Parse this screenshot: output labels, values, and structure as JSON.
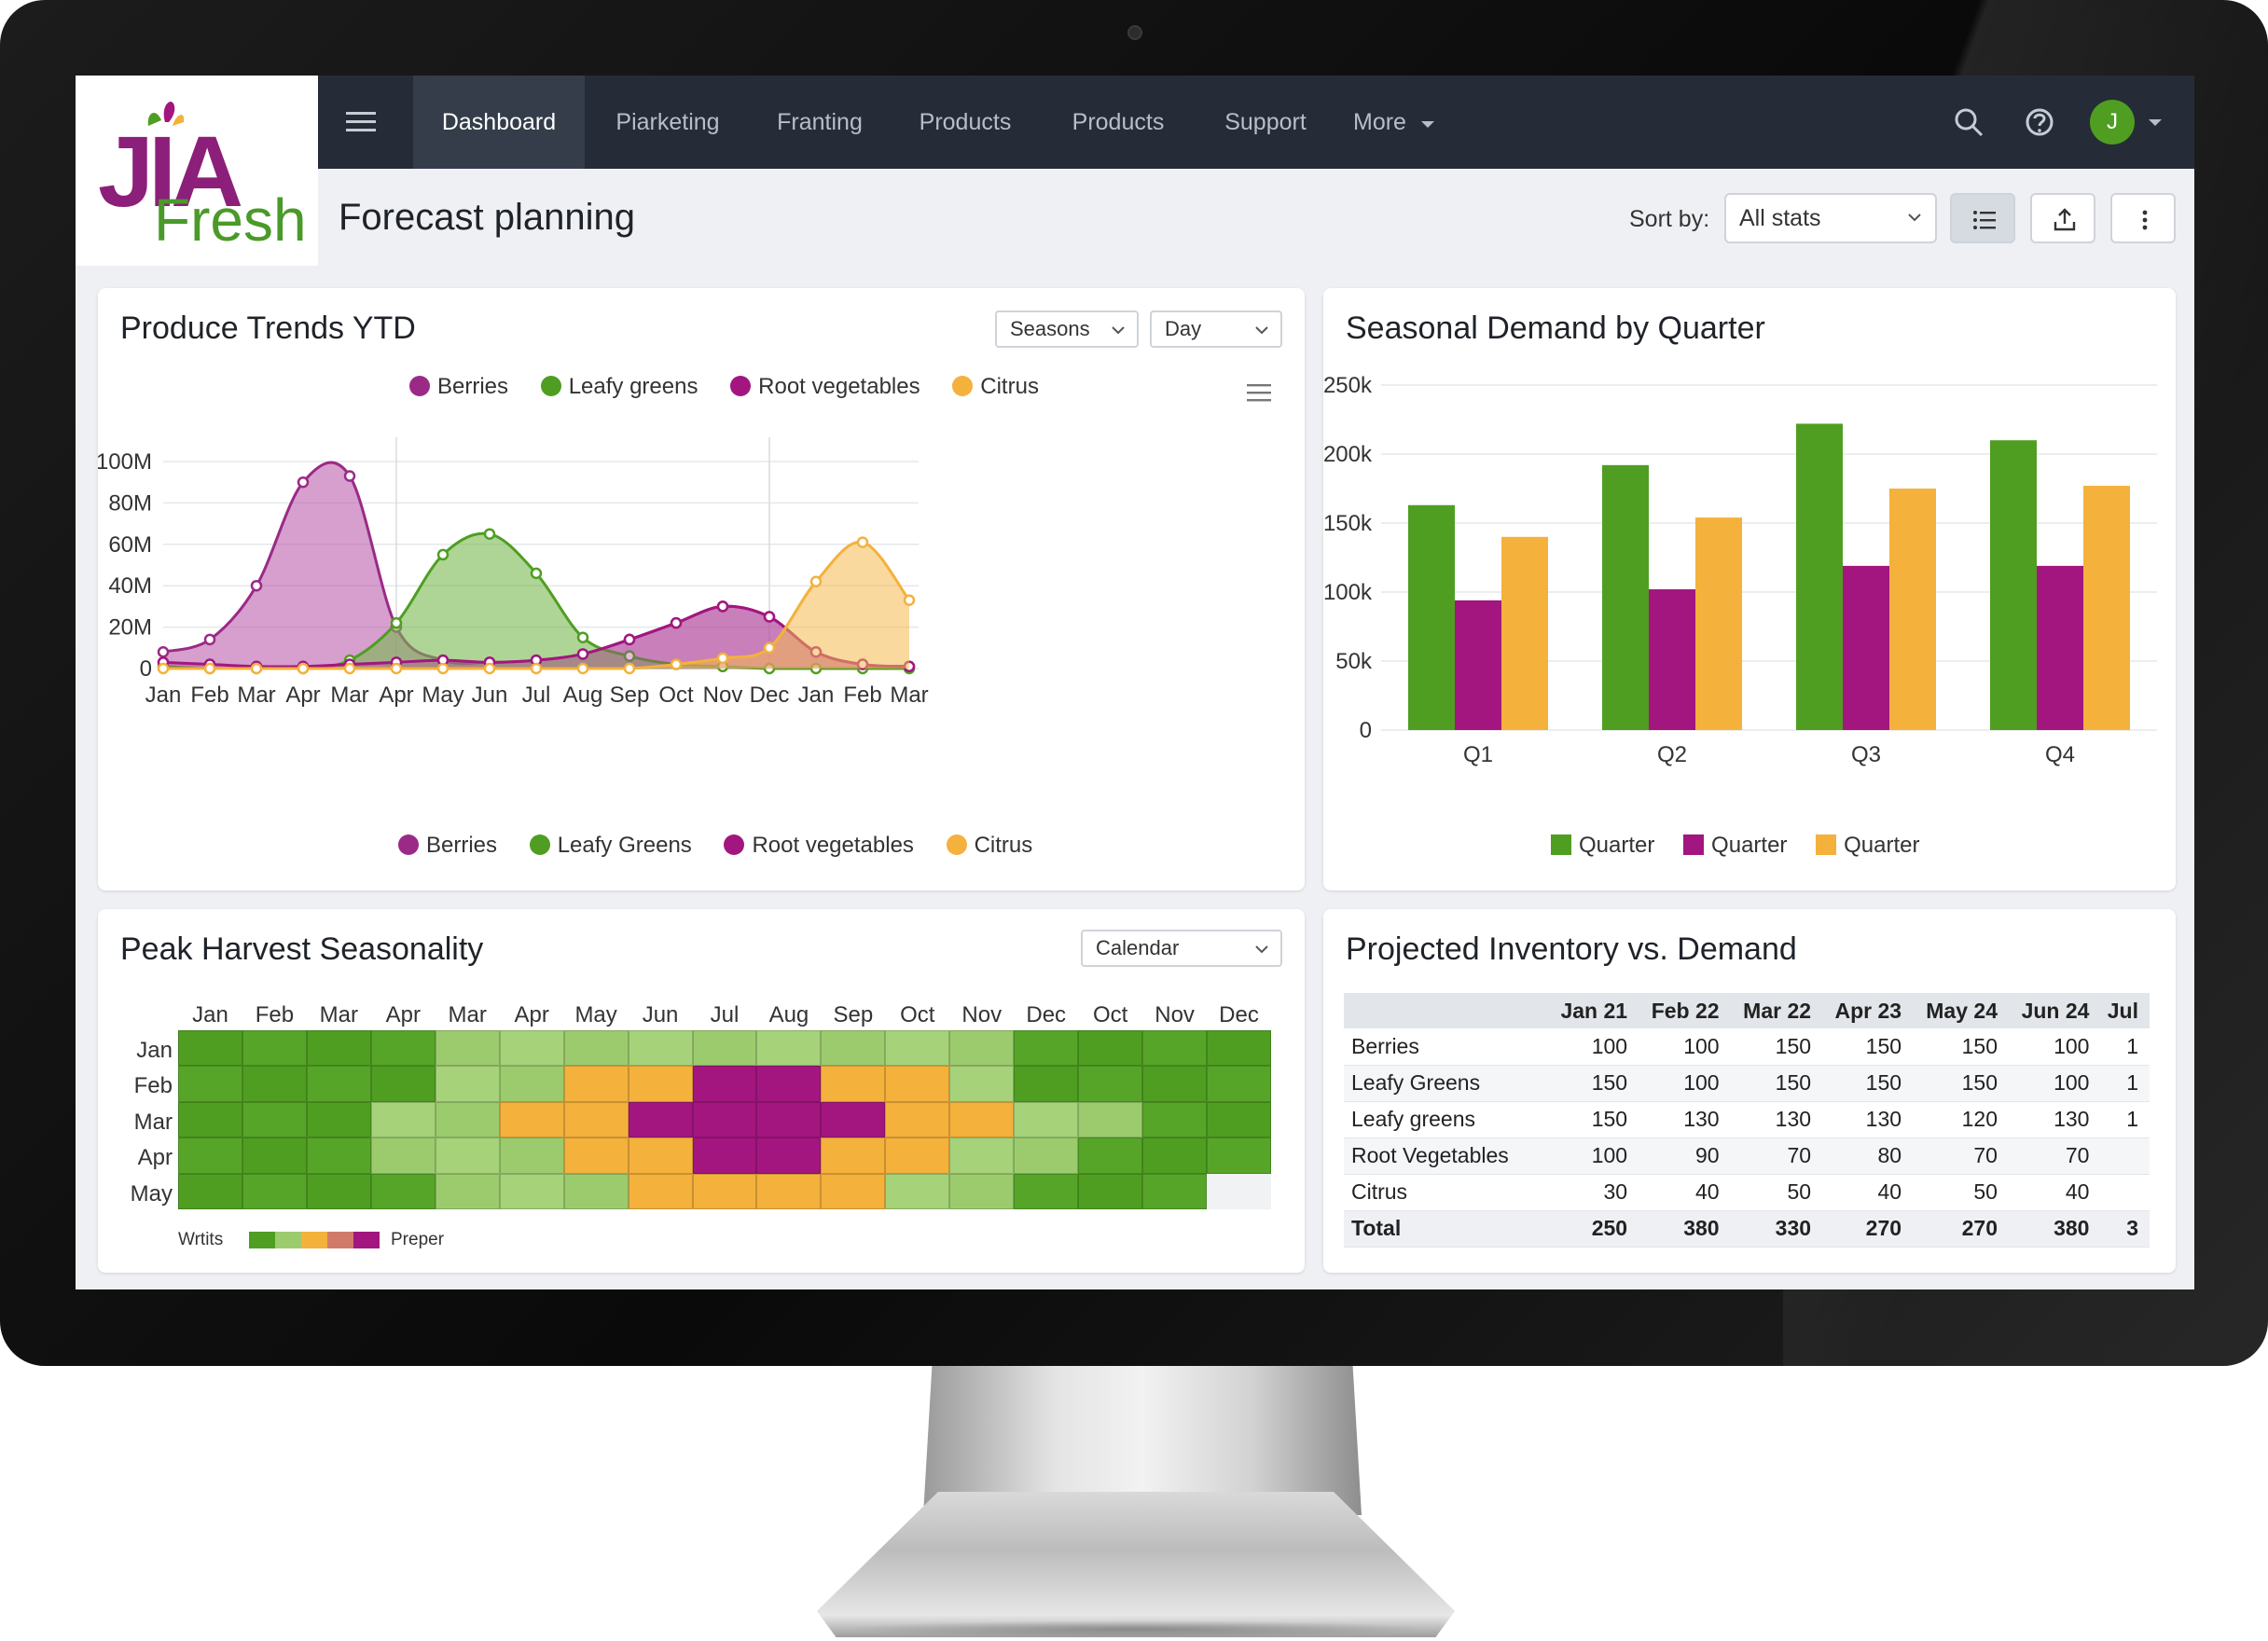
{
  "app": {
    "logo_top": "JIA",
    "logo_bottom": "Fresh",
    "avatar_initial": "J",
    "accent_colors": {
      "berries": "#9b2a86",
      "leafy": "#4f9e22",
      "root": "#a3167f",
      "citrus": "#f4b13c",
      "nav_bg": "#252c37"
    }
  },
  "nav": {
    "items": [
      {
        "label": "Dashboard",
        "active": true
      },
      {
        "label": "Piarketing",
        "active": false
      },
      {
        "label": "Franting",
        "active": false
      },
      {
        "label": "Products",
        "active": false
      },
      {
        "label": "Products",
        "active": false
      },
      {
        "label": "Support",
        "active": false
      },
      {
        "label": "More",
        "active": false
      }
    ],
    "icons": [
      "search-icon",
      "help-icon",
      "bell-icon"
    ]
  },
  "subheader": {
    "title": "Forecast planning",
    "sort_label": "Sort by:",
    "sort_value": "All stats"
  },
  "trends": {
    "title": "Produce Trends YTD",
    "select_1": "Seasons",
    "select_2": "Day",
    "legend_top": [
      "Berries",
      "Leafy greens",
      "Root vegetables",
      "Citrus"
    ],
    "legend_bottom": [
      "Berries",
      "Leafy Greens",
      "Root vegetables",
      "Citrus"
    ]
  },
  "seasonal": {
    "title": "Seasonal Demand by Quarter",
    "legend": [
      "Quarter",
      "Quarter",
      "Quarter"
    ]
  },
  "harvest": {
    "title": "Peak Harvest Seasonality",
    "select": "Calendar",
    "months": [
      "Jan",
      "Feb",
      "Mar",
      "Apr",
      "Mar",
      "Apr",
      "May",
      "Jun",
      "Jul",
      "Aug",
      "Sep",
      "Oct",
      "Nov",
      "Dec",
      "Oct",
      "Nov",
      "Dec"
    ],
    "rows": [
      "Jan",
      "Feb",
      "Mar",
      "Apr",
      "May"
    ],
    "legend_low": "Wrtits",
    "legend_high": "Preper",
    "grid": [
      [
        3,
        3,
        3,
        3,
        2,
        2,
        2,
        2,
        2,
        2,
        2,
        2,
        2,
        3,
        3,
        3,
        3
      ],
      [
        3,
        3,
        3,
        3,
        2,
        2,
        1,
        1,
        0,
        0,
        1,
        1,
        2,
        3,
        3,
        3,
        3
      ],
      [
        3,
        3,
        3,
        2,
        2,
        1,
        1,
        0,
        0,
        0,
        0,
        1,
        1,
        2,
        2,
        3,
        3
      ],
      [
        3,
        3,
        3,
        2,
        2,
        2,
        1,
        1,
        0,
        0,
        1,
        1,
        2,
        2,
        3,
        3,
        3
      ],
      [
        3,
        3,
        3,
        3,
        2,
        2,
        2,
        1,
        1,
        1,
        1,
        2,
        2,
        3,
        3,
        3,
        -1
      ]
    ]
  },
  "inventory": {
    "title": "Projected Inventory vs. Demand",
    "columns": [
      "",
      "Jan 21",
      "Feb 22",
      "Mar 22",
      "Apr 23",
      "May 24",
      "Jun 24",
      "Jul"
    ],
    "rows": [
      [
        "Berries",
        "100",
        "100",
        "150",
        "150",
        "150",
        "100",
        "1"
      ],
      [
        "Leafy Greens",
        "150",
        "100",
        "150",
        "150",
        "150",
        "100",
        "1"
      ],
      [
        "Leafy greens",
        "150",
        "130",
        "130",
        "130",
        "120",
        "130",
        "1"
      ],
      [
        "Root Vegetables",
        "100",
        "90",
        "70",
        "80",
        "70",
        "70",
        ""
      ],
      [
        "Citrus",
        "30",
        "40",
        "50",
        "40",
        "50",
        "40",
        ""
      ],
      [
        "Total",
        "250",
        "380",
        "330",
        "270",
        "270",
        "380",
        "3"
      ]
    ]
  },
  "chart_data": [
    {
      "type": "area",
      "title": "Produce Trends YTD",
      "x": [
        "Jan",
        "Feb",
        "Mar",
        "Apr",
        "Mar",
        "Apr",
        "May",
        "Jun",
        "Jul",
        "Aug",
        "Sep",
        "Oct",
        "Nov",
        "Dec",
        "Jan",
        "Feb",
        "Mar"
      ],
      "y_ticks": [
        "0",
        "20M",
        "40M",
        "60M",
        "80M",
        "100M"
      ],
      "ylim": [
        0,
        100
      ],
      "series": [
        {
          "name": "Berries",
          "color": "#9b2a86",
          "values": [
            8,
            14,
            40,
            90,
            93,
            20,
            4,
            3,
            4,
            7,
            14,
            22,
            30,
            25,
            8,
            2,
            1
          ]
        },
        {
          "name": "Leafy greens",
          "color": "#4f9e22",
          "values": [
            1,
            0,
            0,
            0,
            4,
            22,
            55,
            65,
            46,
            15,
            6,
            2,
            1,
            0,
            0,
            0,
            0
          ]
        },
        {
          "name": "Root vegetables",
          "color": "#a3167f",
          "values": [
            3,
            2,
            1,
            1,
            2,
            3,
            4,
            3,
            4,
            7,
            14,
            22,
            30,
            25,
            8,
            2,
            1
          ]
        },
        {
          "name": "Citrus",
          "color": "#f4b13c",
          "values": [
            0,
            0,
            0,
            0,
            0,
            0,
            0,
            0,
            0,
            0,
            0,
            2,
            5,
            10,
            42,
            61,
            33
          ]
        }
      ]
    },
    {
      "type": "bar",
      "title": "Seasonal Demand by Quarter",
      "categories": [
        "Q1",
        "Q2",
        "Q3",
        "Q4"
      ],
      "y_ticks": [
        "0",
        "50k",
        "100k",
        "150k",
        "200k",
        "250k"
      ],
      "ylim": [
        0,
        250000
      ],
      "series": [
        {
          "name": "Quarter",
          "color": "#4f9e22",
          "values": [
            163000,
            192000,
            222000,
            210000
          ]
        },
        {
          "name": "Quarter",
          "color": "#a3167f",
          "values": [
            94000,
            102000,
            119000,
            119000
          ]
        },
        {
          "name": "Quarter",
          "color": "#f4b13c",
          "values": [
            140000,
            154000,
            175000,
            177000
          ]
        }
      ]
    }
  ]
}
